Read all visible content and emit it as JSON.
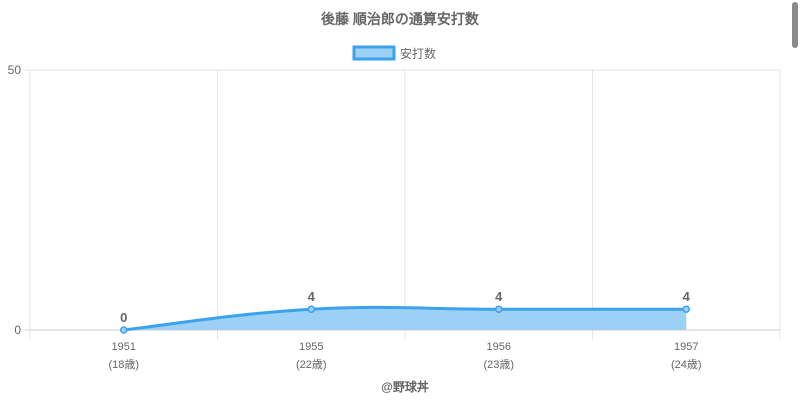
{
  "chart_data": {
    "type": "line",
    "title": "後藤 順治郎の通算安打数",
    "categories": [
      "1951",
      "1955",
      "1956",
      "1957"
    ],
    "category_sublabels": [
      "(18歳)",
      "(22歳)",
      "(23歳)",
      "(24歳)"
    ],
    "series": [
      {
        "name": "安打数",
        "values": [
          0,
          4,
          4,
          4
        ]
      }
    ],
    "ylim": [
      0,
      50
    ],
    "yticks": [
      "0",
      "50"
    ],
    "xlabel": "@野球丼",
    "ylabel": "",
    "grid": true,
    "filled": true,
    "legend": "top",
    "colors": {
      "line": "#3ba3ec",
      "fill": "#9dd0f5",
      "text": "#666666",
      "grid": "#e5e5e5"
    }
  }
}
